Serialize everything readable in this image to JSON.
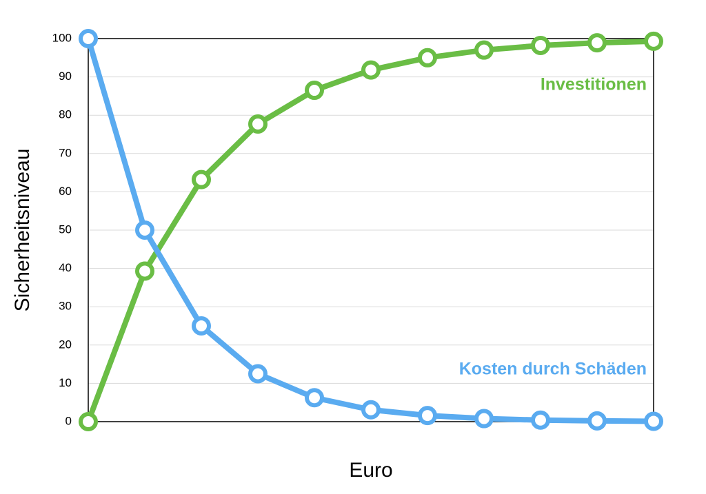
{
  "chart_data": {
    "type": "line",
    "x_label": "Euro",
    "y_label": "Sicherheitsniveau",
    "categories": [
      null,
      null,
      null,
      null,
      null,
      null,
      null,
      null,
      null,
      null,
      null
    ],
    "series": [
      {
        "name": "Investitionen",
        "color": "#6abd45",
        "values": [
          0,
          39.3,
          63.2,
          77.7,
          86.5,
          91.8,
          95.0,
          97.0,
          98.2,
          98.9,
          99.3
        ]
      },
      {
        "name": "Kosten durch Schäden",
        "color": "#5aabf0",
        "values": [
          100,
          50,
          25,
          12.5,
          6.25,
          3.1,
          1.6,
          0.8,
          0.4,
          0.2,
          0.1
        ]
      }
    ],
    "ylim": [
      0,
      100
    ],
    "yticks": [
      0,
      10,
      20,
      30,
      40,
      50,
      60,
      70,
      80,
      90,
      100
    ],
    "grid": true
  }
}
